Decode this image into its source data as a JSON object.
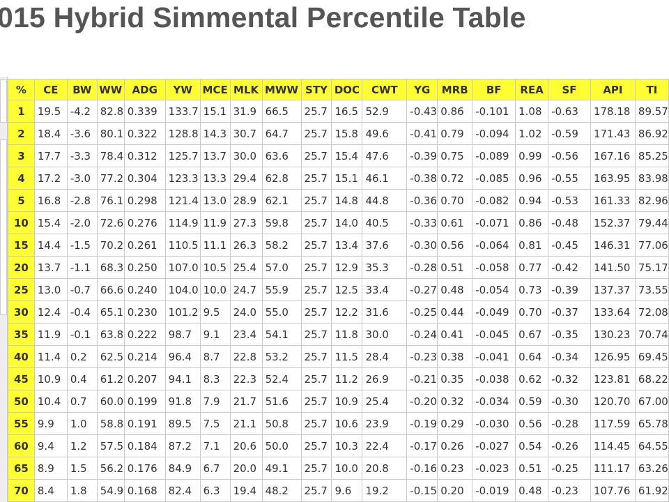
{
  "title": "015 Hybrid Simmental Percentile Table",
  "table": {
    "header": [
      "%",
      "CE",
      "BW",
      "WW",
      "ADG",
      "YW",
      "MCE",
      "MLK",
      "MWW",
      "STY",
      "DOC",
      "CWT",
      "YG",
      "MRB",
      "BF",
      "REA",
      "SF",
      "API",
      "TI"
    ],
    "rows": [
      [
        "1",
        "19.5",
        "-4.2",
        "82.8",
        "0.339",
        "133.7",
        "15.1",
        "31.9",
        "66.5",
        "25.7",
        "16.5",
        "52.9",
        "-0.43",
        "0.86",
        "-0.101",
        "1.08",
        "-0.63",
        "178.18",
        "89.57"
      ],
      [
        "2",
        "18.4",
        "-3.6",
        "80.1",
        "0.322",
        "128.8",
        "14.3",
        "30.7",
        "64.7",
        "25.7",
        "15.8",
        "49.6",
        "-0.41",
        "0.79",
        "-0.094",
        "1.02",
        "-0.59",
        "171.43",
        "86.92"
      ],
      [
        "3",
        "17.7",
        "-3.3",
        "78.4",
        "0.312",
        "125.7",
        "13.7",
        "30.0",
        "63.6",
        "25.7",
        "15.4",
        "47.6",
        "-0.39",
        "0.75",
        "-0.089",
        "0.99",
        "-0.56",
        "167.16",
        "85.25"
      ],
      [
        "4",
        "17.2",
        "-3.0",
        "77.2",
        "0.304",
        "123.3",
        "13.3",
        "29.4",
        "62.8",
        "25.7",
        "15.1",
        "46.1",
        "-0.38",
        "0.72",
        "-0.085",
        "0.96",
        "-0.55",
        "163.95",
        "83.98"
      ],
      [
        "5",
        "16.8",
        "-2.8",
        "76.1",
        "0.298",
        "121.4",
        "13.0",
        "28.9",
        "62.1",
        "25.7",
        "14.8",
        "44.8",
        "-0.36",
        "0.70",
        "-0.082",
        "0.94",
        "-0.53",
        "161.33",
        "82.96"
      ],
      [
        "10",
        "15.4",
        "-2.0",
        "72.6",
        "0.276",
        "114.9",
        "11.9",
        "27.3",
        "59.8",
        "25.7",
        "14.0",
        "40.5",
        "-0.33",
        "0.61",
        "-0.071",
        "0.86",
        "-0.48",
        "152.37",
        "79.44"
      ],
      [
        "15",
        "14.4",
        "-1.5",
        "70.2",
        "0.261",
        "110.5",
        "11.1",
        "26.3",
        "58.2",
        "25.7",
        "13.4",
        "37.6",
        "-0.30",
        "0.56",
        "-0.064",
        "0.81",
        "-0.45",
        "146.31",
        "77.06"
      ],
      [
        "20",
        "13.7",
        "-1.1",
        "68.3",
        "0.250",
        "107.0",
        "10.5",
        "25.4",
        "57.0",
        "25.7",
        "12.9",
        "35.3",
        "-0.28",
        "0.51",
        "-0.058",
        "0.77",
        "-0.42",
        "141.50",
        "75.17"
      ],
      [
        "25",
        "13.0",
        "-0.7",
        "66.6",
        "0.240",
        "104.0",
        "10.0",
        "24.7",
        "55.9",
        "25.7",
        "12.5",
        "33.4",
        "-0.27",
        "0.48",
        "-0.054",
        "0.73",
        "-0.39",
        "137.37",
        "73.55"
      ],
      [
        "30",
        "12.4",
        "-0.4",
        "65.1",
        "0.230",
        "101.2",
        "9.5",
        "24.0",
        "55.0",
        "25.7",
        "12.2",
        "31.6",
        "-0.25",
        "0.44",
        "-0.049",
        "0.70",
        "-0.37",
        "133.64",
        "72.08"
      ],
      [
        "35",
        "11.9",
        "-0.1",
        "63.8",
        "0.222",
        "98.7",
        "9.1",
        "23.4",
        "54.1",
        "25.7",
        "11.8",
        "30.0",
        "-0.24",
        "0.41",
        "-0.045",
        "0.67",
        "-0.35",
        "130.23",
        "70.74"
      ],
      [
        "40",
        "11.4",
        "0.2",
        "62.5",
        "0.214",
        "96.4",
        "8.7",
        "22.8",
        "53.2",
        "25.7",
        "11.5",
        "28.4",
        "-0.23",
        "0.38",
        "-0.041",
        "0.64",
        "-0.34",
        "126.95",
        "69.45"
      ],
      [
        "45",
        "10.9",
        "0.4",
        "61.2",
        "0.207",
        "94.1",
        "8.3",
        "22.3",
        "52.4",
        "25.7",
        "11.2",
        "26.9",
        "-0.21",
        "0.35",
        "-0.038",
        "0.62",
        "-0.32",
        "123.81",
        "68.22"
      ],
      [
        "50",
        "10.4",
        "0.7",
        "60.0",
        "0.199",
        "91.8",
        "7.9",
        "21.7",
        "51.6",
        "25.7",
        "10.9",
        "25.4",
        "-0.20",
        "0.32",
        "-0.034",
        "0.59",
        "-0.30",
        "120.70",
        "67.00"
      ],
      [
        "55",
        "9.9",
        "1.0",
        "58.8",
        "0.191",
        "89.5",
        "7.5",
        "21.1",
        "50.8",
        "25.7",
        "10.6",
        "23.9",
        "-0.19",
        "0.29",
        "-0.030",
        "0.56",
        "-0.28",
        "117.59",
        "65.78"
      ],
      [
        "60",
        "9.4",
        "1.2",
        "57.5",
        "0.184",
        "87.2",
        "7.1",
        "20.6",
        "50.0",
        "25.7",
        "10.3",
        "22.4",
        "-0.17",
        "0.26",
        "-0.027",
        "0.54",
        "-0.26",
        "114.45",
        "64.55"
      ],
      [
        "65",
        "8.9",
        "1.5",
        "56.2",
        "0.176",
        "84.9",
        "6.7",
        "20.0",
        "49.1",
        "25.7",
        "10.0",
        "20.8",
        "-0.16",
        "0.23",
        "-0.023",
        "0.51",
        "-0.25",
        "111.17",
        "63.26"
      ],
      [
        "70",
        "8.4",
        "1.8",
        "54.9",
        "0.168",
        "82.4",
        "6.3",
        "19.4",
        "48.2",
        "25.7",
        "9.6",
        "19.2",
        "-0.15",
        "0.20",
        "-0.019",
        "0.48",
        "-0.23",
        "107.76",
        "61.92"
      ]
    ]
  }
}
